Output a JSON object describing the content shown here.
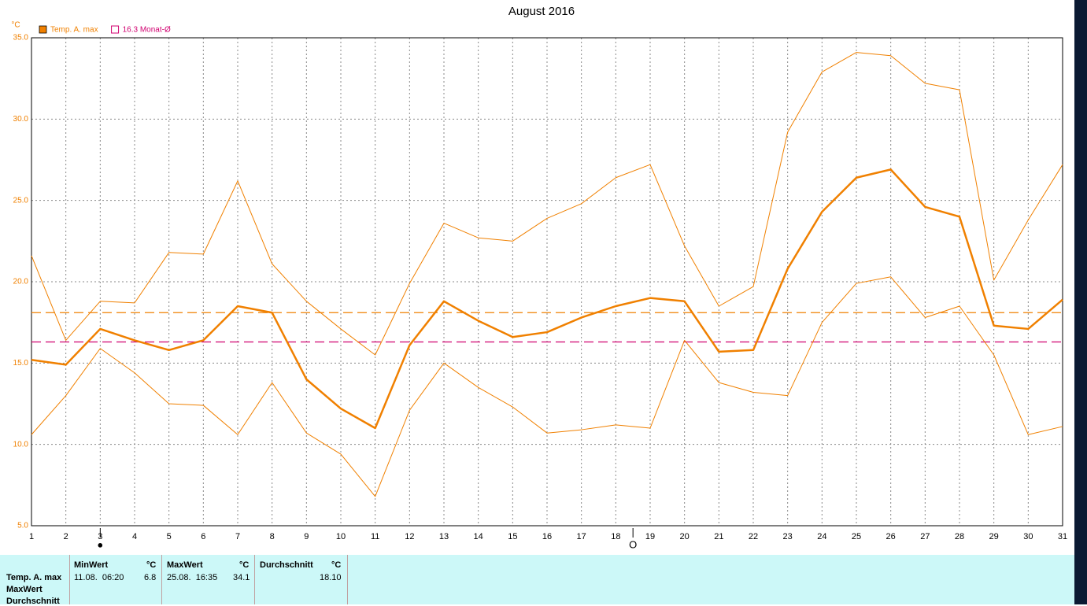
{
  "chart_data": {
    "type": "line",
    "title": "August 2016",
    "unit": "°C",
    "x": [
      1,
      2,
      3,
      4,
      5,
      6,
      7,
      8,
      9,
      10,
      11,
      12,
      13,
      14,
      15,
      16,
      17,
      18,
      19,
      20,
      21,
      22,
      23,
      24,
      25,
      26,
      27,
      28,
      29,
      30,
      31
    ],
    "xlim": [
      1,
      31
    ],
    "xticks": [
      1,
      2,
      3,
      4,
      5,
      6,
      7,
      8,
      9,
      10,
      11,
      12,
      13,
      14,
      15,
      16,
      17,
      18,
      19,
      20,
      21,
      22,
      23,
      24,
      25,
      26,
      27,
      28,
      29,
      30,
      31
    ],
    "series": [
      {
        "name": "Temp. A. max",
        "color": "#f08000",
        "values": [
          15.2,
          14.9,
          17.1,
          16.4,
          15.8,
          16.4,
          18.5,
          18.1,
          14.0,
          12.2,
          11.0,
          16.1,
          18.8,
          17.6,
          16.6,
          16.9,
          17.8,
          18.5,
          19.0,
          18.8,
          15.7,
          15.8,
          20.8,
          24.3,
          26.4,
          26.9,
          24.6,
          24.0,
          17.3,
          17.1,
          18.9
        ]
      },
      {
        "color": "#f08000",
        "values": [
          21.6,
          16.4,
          18.8,
          18.7,
          21.8,
          21.7,
          26.2,
          21.1,
          18.8,
          17.1,
          15.5,
          19.9,
          23.6,
          22.7,
          22.5,
          23.9,
          24.8,
          26.4,
          27.2,
          22.2,
          18.5,
          19.7,
          29.2,
          32.9,
          34.1,
          33.9,
          32.2,
          31.8,
          20.1,
          23.8,
          27.2
        ]
      },
      {
        "color": "#f08000",
        "values": [
          10.6,
          13.0,
          15.9,
          14.4,
          12.5,
          12.4,
          10.6,
          13.8,
          10.7,
          9.4,
          6.8,
          12.1,
          15.0,
          13.5,
          12.3,
          10.7,
          10.9,
          11.2,
          11.0,
          16.4,
          13.8,
          13.2,
          13.0,
          17.5,
          19.9,
          20.3,
          17.8,
          18.5,
          15.5,
          10.6,
          11.1
        ]
      }
    ],
    "reference_lines": [
      {
        "value": 18.1,
        "color": "#f08000"
      },
      {
        "value": 16.3,
        "label": "16.3 Monat-Ø",
        "color": "#d0006f"
      }
    ],
    "markers": [
      {
        "x": 3,
        "label": "●"
      },
      {
        "x": 18.5,
        "label": "O"
      }
    ],
    "ylim": [
      5,
      35
    ],
    "yticks": [
      {
        "value": 5,
        "label": "5.0"
      },
      {
        "value": 10,
        "label": "10.0"
      },
      {
        "value": 15,
        "label": "15.0"
      },
      {
        "value": 20,
        "label": "20.0"
      },
      {
        "value": 25,
        "label": "25.0"
      },
      {
        "value": 30,
        "label": "30.0"
      },
      {
        "value": 35,
        "label": "35.0"
      }
    ],
    "grid": true
  },
  "stats_table": {
    "row_labels": [
      "Temp. A. max",
      "MaxWert",
      "Durchschnitt"
    ],
    "headers": [
      "MinWert",
      "°C",
      "MaxWert",
      "°C",
      "Durchschnitt",
      "°C"
    ],
    "rows": [
      [
        "11.08.  06:20",
        "6.8",
        "25.08.  16:35",
        "34.1",
        "18.10"
      ]
    ]
  }
}
